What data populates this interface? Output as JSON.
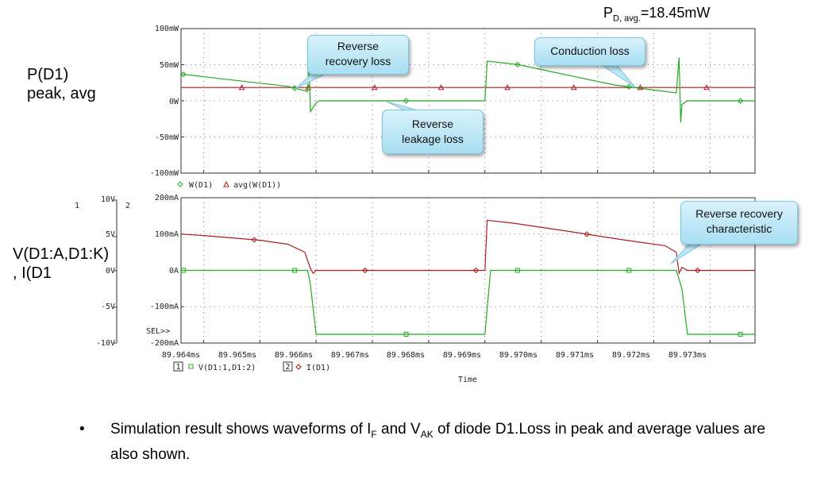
{
  "pd_avg": {
    "label_main": "P",
    "label_sub": "D, avg.",
    "value": "=18.45mW"
  },
  "top_panel": {
    "side_label_1": "P(D1)",
    "side_label_2": "peak, avg",
    "yticks": [
      "100mW",
      "50mW",
      "0W",
      "-50mW",
      "-100mW"
    ],
    "legend": [
      "W(D1)",
      "avg(W(D1))"
    ]
  },
  "bottom_panel": {
    "side_label_1": "V(D1:A,D1:K)",
    "side_label_2": ", I(D1",
    "axis1_header": "1",
    "axis2_header": "2",
    "yticks_v": [
      "10V",
      "5V",
      "0V",
      "-5V",
      "-10V"
    ],
    "yticks_i": [
      "200mA",
      "100mA",
      "0A",
      "-100mA",
      "-200mA"
    ],
    "sel_label": "SEL>>",
    "legend_1_num": "1",
    "legend_1": "V(D1:1,D1:2)",
    "legend_2_num": "2",
    "legend_2": "I(D1)"
  },
  "xaxis": {
    "ticks": [
      "89.964ms",
      "89.965ms",
      "89.966ms",
      "89.967ms",
      "89.968ms",
      "89.969ms",
      "89.970ms",
      "89.971ms",
      "89.972ms",
      "89.973ms"
    ],
    "label": "Time"
  },
  "callouts": {
    "reverse_recovery_loss": [
      "Reverse",
      "recovery loss"
    ],
    "conduction_loss": [
      "Conduction loss"
    ],
    "reverse_leakage_loss": [
      "Reverse",
      "leakage loss"
    ],
    "reverse_recovery_char": [
      "Reverse recovery",
      "characteristic"
    ]
  },
  "footnote": {
    "bullet": "•",
    "t1": "Simulation result shows waveforms of I",
    "s1": "F",
    "t2": " and V",
    "s2": "AK",
    "t3": " of diode D1.Loss in peak and average values are also shown."
  },
  "colors": {
    "green": "#22aa22",
    "red": "#b01c1c",
    "grid": "#555555",
    "callout": "#a8def2"
  },
  "chart_data": [
    {
      "type": "line",
      "title": "",
      "xlabel": "",
      "ylabel": "",
      "xlim": [
        89.9636,
        89.9738
      ],
      "ylim": [
        -100,
        100
      ],
      "y_unit": "mW",
      "grid": true,
      "series": [
        {
          "name": "W(D1)",
          "color": "#22aa22",
          "x": [
            89.9636,
            89.9655,
            89.96585,
            89.96587,
            89.9659,
            89.966,
            89.96605,
            89.9661,
            89.969,
            89.96904,
            89.9696,
            89.9705,
            89.9713,
            89.972,
            89.9724,
            89.97245,
            89.97248,
            89.9725,
            89.9726,
            89.9738
          ],
          "y": [
            37,
            20,
            13,
            70,
            -15,
            -3,
            0,
            0,
            0,
            55,
            50,
            35,
            22,
            15,
            11,
            60,
            -30,
            -5,
            0,
            0
          ]
        },
        {
          "name": "avg(W(D1))",
          "color": "#b01c1c",
          "x": [
            89.9636,
            89.9738
          ],
          "y": [
            18.45,
            18.45
          ]
        }
      ]
    },
    {
      "type": "line",
      "title": "",
      "xlabel": "Time",
      "ylabel": "",
      "xlim": [
        89.9636,
        89.9738
      ],
      "ylim": [
        -200,
        200
      ],
      "y_unit": "mA",
      "y2lim": [
        -10,
        10
      ],
      "y2_unit": "V",
      "grid": true,
      "series": [
        {
          "name": "V(D1:1,D1:2)",
          "axis": "V",
          "color": "#22aa22",
          "x": [
            89.9636,
            89.96585,
            89.9659,
            89.966,
            89.969,
            89.9691,
            89.9724,
            89.9725,
            89.9726,
            89.9738
          ],
          "y": [
            0,
            0,
            -2,
            -8.8,
            -8.8,
            0,
            0,
            -2.5,
            -8.8,
            -8.8
          ]
        },
        {
          "name": "I(D1)",
          "axis": "I",
          "color": "#b01c1c",
          "x": [
            89.9636,
            89.964,
            89.965,
            89.9655,
            89.9658,
            89.9659,
            89.96595,
            89.966,
            89.969,
            89.96904,
            89.9695,
            89.9705,
            89.9715,
            89.9722,
            89.9724,
            89.97245,
            89.9725,
            89.9726,
            89.9738
          ],
          "y": [
            100,
            96,
            83,
            72,
            50,
            5,
            -8,
            0,
            0,
            138,
            130,
            107,
            83,
            68,
            50,
            -8,
            8,
            0,
            0
          ]
        }
      ]
    }
  ]
}
